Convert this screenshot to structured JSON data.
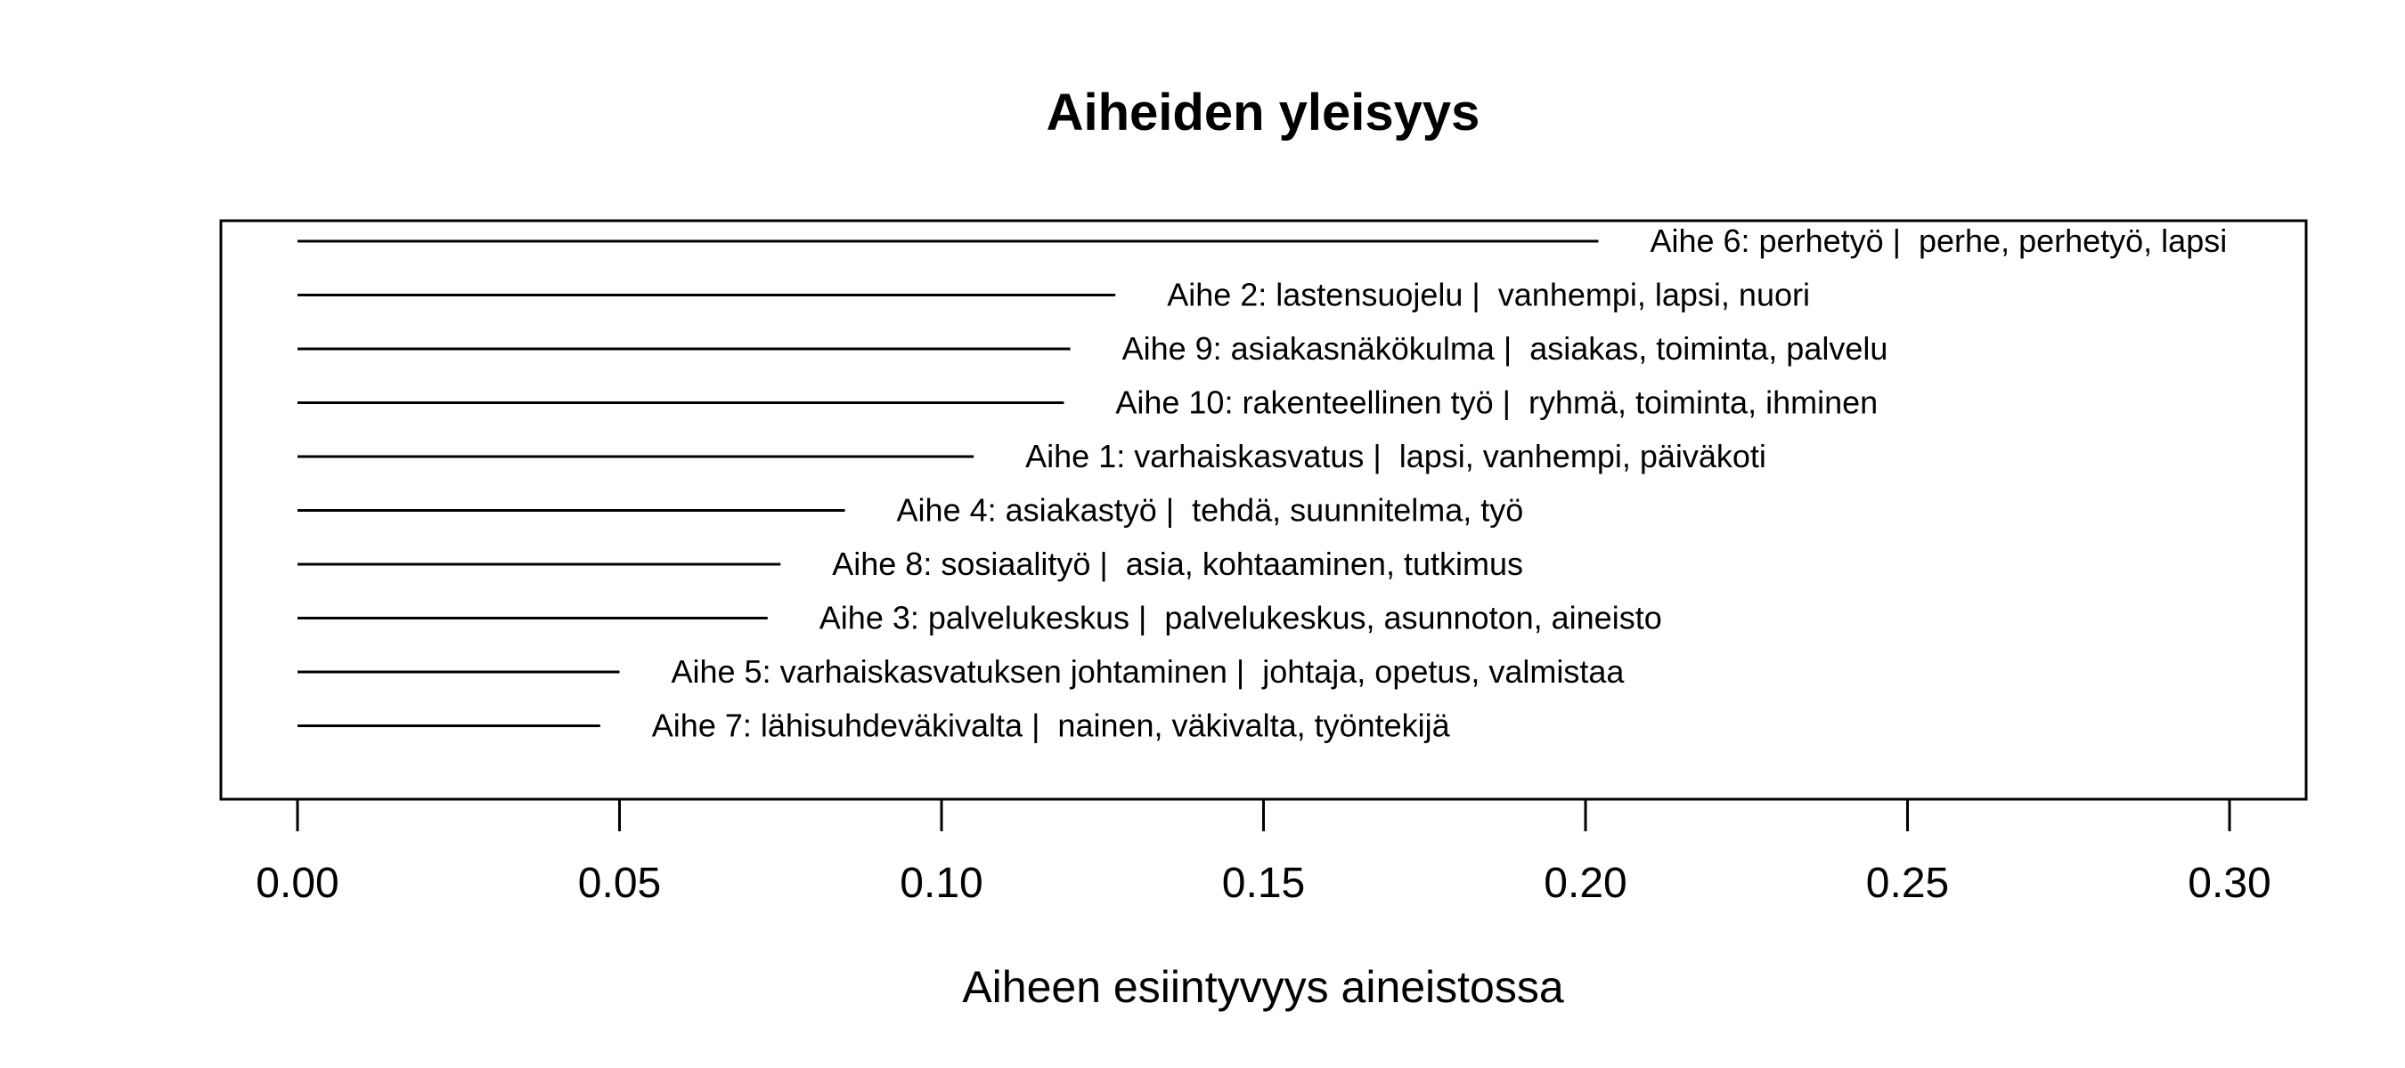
{
  "chart_data": {
    "type": "bar",
    "orientation": "horizontal",
    "title": "Aiheiden yleisyys",
    "xlabel": "Aiheen esiintyvyys aineistossa",
    "ylabel": "",
    "xlim": [
      0,
      0.3
    ],
    "xticks": [
      "0.00",
      "0.05",
      "0.10",
      "0.15",
      "0.20",
      "0.25",
      "0.30"
    ],
    "grid": false,
    "categories": [
      "Aihe 6: perhetyö |  perhe, perhetyö, lapsi",
      "Aihe 2: lastensuojelu |  vanhempi, lapsi, nuori",
      "Aihe 9: asiakasnäkökulma |  asiakas, toiminta, palvelu",
      "Aihe 10: rakenteellinen työ |  ryhmä, toiminta, ihminen",
      "Aihe 1: varhaiskasvatus |  lapsi, vanhempi, päiväkoti",
      "Aihe 4: asiakastyö |  tehdä, suunnitelma, työ",
      "Aihe 8: sosiaalityö |  asia, kohtaaminen, tutkimus",
      "Aihe 3: palvelukeskus |  palvelukeskus, asunnoton, aineisto",
      "Aihe 5: varhaiskasvatuksen johtaminen |  johtaja, opetus, valmistaa",
      "Aihe 7: lähisuhdeväkivalta |  nainen, väkivalta, työntekijä"
    ],
    "values": [
      0.202,
      0.127,
      0.12,
      0.119,
      0.105,
      0.085,
      0.075,
      0.073,
      0.05,
      0.047
    ]
  }
}
